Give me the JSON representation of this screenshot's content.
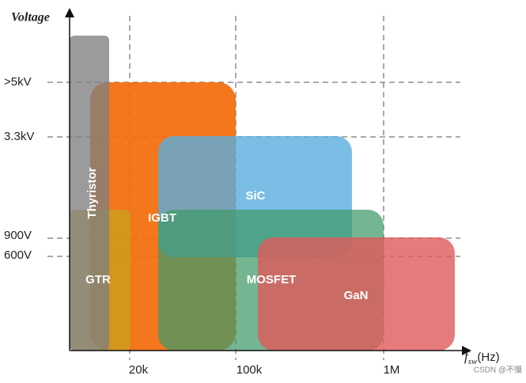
{
  "axes": {
    "y_title": "Voltage",
    "x_title": {
      "main": "f",
      "sub": "sw",
      "unit": "(Hz)"
    }
  },
  "y_levels": [
    ">5kV",
    "3.3kV",
    "900V",
    "600V"
  ],
  "x_levels": [
    "20k",
    "100k",
    "1M"
  ],
  "regions": [
    {
      "label": "IGBT"
    },
    {
      "label": "SiC"
    },
    {
      "label": "MOSFET"
    },
    {
      "label": "GaN"
    },
    {
      "label": "GTR"
    },
    {
      "label": "Thyristor"
    }
  ],
  "watermark": "CSDN @不慢"
}
